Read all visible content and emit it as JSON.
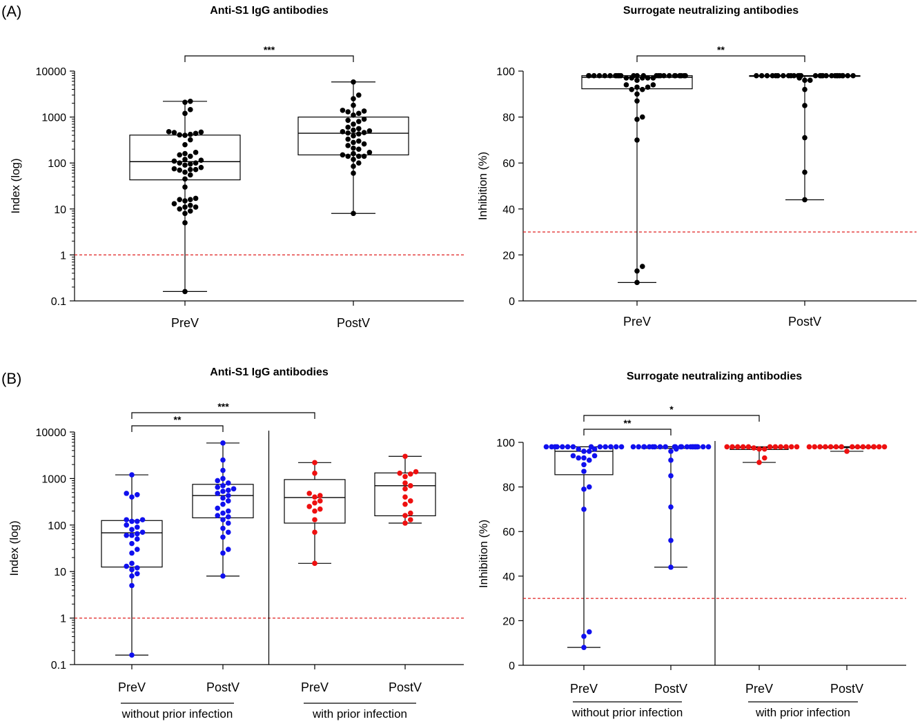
{
  "panel_labels": {
    "a": "(A)",
    "b": "(B)"
  },
  "chart_data": [
    {
      "id": "a_igg",
      "type": "box-scatter",
      "title": "Anti-S1 IgG antibodies",
      "ylabel": "Index (log)",
      "yscale": "log",
      "ylim": [
        0.1,
        10000
      ],
      "yticks": [
        {
          "v": 10000,
          "label": "10000"
        },
        {
          "v": 1000,
          "label": "1000"
        },
        {
          "v": 100,
          "label": "100"
        },
        {
          "v": 10,
          "label": "10"
        },
        {
          "v": 1,
          "label": "1"
        },
        {
          "v": 0.1,
          "label": "0.1"
        }
      ],
      "threshold": 1,
      "categories": [
        "PreV",
        "PostV"
      ],
      "groups": [],
      "boxes": [
        {
          "min": 0.16,
          "q1": 43,
          "median": 107,
          "q3": 405,
          "max": 2200
        },
        {
          "min": 8,
          "q1": 150,
          "median": 445,
          "q3": 1000,
          "max": 5800
        }
      ],
      "points": [
        [
          0.16,
          5,
          8,
          9,
          10,
          11,
          11,
          12,
          13,
          15,
          16,
          16,
          17,
          30,
          45,
          55,
          63,
          70,
          72,
          72,
          75,
          80,
          90,
          95,
          100,
          100,
          110,
          115,
          120,
          140,
          150,
          160,
          170,
          250,
          320,
          400,
          410,
          420,
          440,
          460,
          470,
          480,
          1200,
          1450,
          2100,
          2200
        ],
        [
          8,
          60,
          85,
          100,
          120,
          140,
          140,
          140,
          150,
          160,
          170,
          200,
          210,
          240,
          260,
          280,
          300,
          330,
          390,
          430,
          450,
          460,
          480,
          500,
          520,
          560,
          600,
          700,
          800,
          850,
          900,
          1100,
          1200,
          1300,
          1350,
          1400,
          1800,
          2500,
          3000,
          5800
        ]
      ],
      "point_colors": [
        "#000000",
        "#000000"
      ],
      "significance": [
        {
          "from": 0,
          "to": 1,
          "label": "***"
        }
      ]
    },
    {
      "id": "a_snt",
      "type": "box-scatter",
      "title": "Surrogate neutralizing antibodies",
      "ylabel": "Inhibition (%)",
      "yscale": "linear",
      "ylim": [
        0,
        100
      ],
      "yticks": [
        {
          "v": 100,
          "label": "100"
        },
        {
          "v": 80,
          "label": "80"
        },
        {
          "v": 60,
          "label": "60"
        },
        {
          "v": 40,
          "label": "40"
        },
        {
          "v": 20,
          "label": "20"
        },
        {
          "v": 0,
          "label": "0"
        }
      ],
      "threshold": 30,
      "categories": [
        "PreV",
        "PostV"
      ],
      "groups": [],
      "boxes": [
        {
          "min": 8,
          "q1": 92.3,
          "median": 97.3,
          "q3": 98,
          "max": 98
        },
        {
          "min": 44,
          "q1": 98,
          "median": 98,
          "q3": 98,
          "max": 98
        }
      ],
      "points": [
        [
          8,
          13,
          15,
          70,
          79,
          80,
          87,
          90,
          92,
          92,
          93,
          93,
          94,
          94,
          96,
          97,
          97,
          97,
          97,
          97,
          98,
          98,
          98,
          98,
          98,
          98,
          98,
          98,
          98,
          98,
          98,
          98,
          98,
          98,
          98,
          98,
          98,
          98,
          98,
          98,
          98,
          98,
          98,
          98,
          98,
          98
        ],
        [
          44,
          56,
          71,
          85,
          92,
          96,
          96,
          97,
          98,
          98,
          98,
          98,
          98,
          98,
          98,
          98,
          98,
          98,
          98,
          98,
          98,
          98,
          98,
          98,
          98,
          98,
          98,
          98,
          98,
          98,
          98,
          98,
          98,
          98,
          98,
          98,
          98,
          98,
          98,
          98
        ]
      ],
      "point_colors": [
        "#000000",
        "#000000"
      ],
      "significance": [
        {
          "from": 0,
          "to": 1,
          "label": "**"
        }
      ]
    },
    {
      "id": "b_igg",
      "type": "box-scatter",
      "title": "Anti-S1 IgG antibodies",
      "ylabel": "Index (log)",
      "yscale": "log",
      "ylim": [
        0.1,
        10000
      ],
      "yticks": [
        {
          "v": 10000,
          "label": "10000"
        },
        {
          "v": 1000,
          "label": "1000"
        },
        {
          "v": 100,
          "label": "100"
        },
        {
          "v": 10,
          "label": "10"
        },
        {
          "v": 1,
          "label": "1"
        },
        {
          "v": 0.1,
          "label": "0.1"
        }
      ],
      "threshold": 1,
      "categories": [
        "PreV",
        "PostV",
        "PreV",
        "PostV"
      ],
      "groups": [
        {
          "label": "without prior infection",
          "span": [
            0,
            1
          ]
        },
        {
          "label": "with prior infection",
          "span": [
            2,
            3
          ]
        }
      ],
      "boxes": [
        {
          "min": 0.16,
          "q1": 12.5,
          "median": 68,
          "q3": 125,
          "max": 1200
        },
        {
          "min": 8,
          "q1": 143,
          "median": 430,
          "q3": 750,
          "max": 5800
        },
        {
          "min": 15,
          "q1": 110,
          "median": 390,
          "q3": 950,
          "max": 2200
        },
        {
          "min": 110,
          "q1": 158,
          "median": 700,
          "q3": 1320,
          "max": 3000
        }
      ],
      "points": [
        [
          0.16,
          5,
          8,
          9,
          11,
          12,
          13,
          15,
          25,
          30,
          40,
          50,
          60,
          60,
          65,
          70,
          80,
          90,
          100,
          120,
          120,
          130,
          130,
          400,
          450,
          480,
          1200
        ],
        [
          8,
          25,
          30,
          55,
          70,
          85,
          110,
          130,
          150,
          160,
          180,
          200,
          230,
          280,
          330,
          380,
          430,
          480,
          530,
          560,
          600,
          650,
          700,
          800,
          900,
          1000,
          1500,
          2500,
          5800
        ],
        [
          15,
          70,
          130,
          200,
          220,
          250,
          300,
          330,
          400,
          430,
          480,
          1300,
          2200
        ],
        [
          110,
          130,
          160,
          180,
          280,
          330,
          400,
          600,
          700,
          800,
          1100,
          1250,
          1300,
          1400,
          3000
        ]
      ],
      "point_colors": [
        "#1010ee",
        "#1010ee",
        "#ee1010",
        "#ee1010"
      ],
      "significance": [
        {
          "from": 0,
          "to": 1,
          "label": "**"
        },
        {
          "from": 0,
          "to": 2,
          "label": "***"
        }
      ],
      "divider_after": 1
    },
    {
      "id": "b_snt",
      "type": "box-scatter",
      "title": "Surrogate neutralizing antibodies",
      "ylabel": "Inhibition (%)",
      "yscale": "linear",
      "ylim": [
        0,
        100
      ],
      "yticks": [
        {
          "v": 100,
          "label": "100"
        },
        {
          "v": 80,
          "label": "80"
        },
        {
          "v": 60,
          "label": "60"
        },
        {
          "v": 40,
          "label": "40"
        },
        {
          "v": 20,
          "label": "20"
        },
        {
          "v": 0,
          "label": "0"
        }
      ],
      "threshold": 30,
      "categories": [
        "PreV",
        "PostV",
        "PreV",
        "PostV"
      ],
      "groups": [
        {
          "label": "without prior infection",
          "span": [
            0,
            1
          ]
        },
        {
          "label": "with prior infection",
          "span": [
            2,
            3
          ]
        }
      ],
      "boxes": [
        {
          "min": 8,
          "q1": 85.5,
          "median": 96,
          "q3": 98,
          "max": 98
        },
        {
          "min": 44,
          "q1": 97.3,
          "median": 98,
          "q3": 98,
          "max": 98
        },
        {
          "min": 91,
          "q1": 96.8,
          "median": 97.6,
          "q3": 98,
          "max": 98
        },
        {
          "min": 96,
          "q1": 97.6,
          "median": 98,
          "q3": 98,
          "max": 98
        }
      ],
      "points": [
        [
          8,
          13,
          15,
          70,
          79,
          80,
          87,
          90,
          92,
          93,
          93,
          94,
          94,
          96,
          96,
          97,
          97,
          98,
          98,
          98,
          98,
          98,
          98,
          98,
          98,
          98,
          98,
          98,
          98,
          98
        ],
        [
          44,
          56,
          71,
          85,
          92,
          96,
          97,
          98,
          98,
          98,
          98,
          98,
          98,
          98,
          98,
          98,
          98,
          98,
          98,
          98,
          98,
          98,
          98,
          98,
          98,
          98,
          98,
          98,
          98,
          98
        ],
        [
          91,
          93,
          97,
          97,
          97.5,
          98,
          98,
          98,
          98,
          98,
          98,
          98,
          98,
          98,
          98,
          98
        ],
        [
          96,
          98,
          98,
          98,
          98,
          98,
          98,
          98,
          98,
          98,
          98,
          98,
          98,
          98,
          98,
          98
        ]
      ],
      "point_colors": [
        "#1010ee",
        "#1010ee",
        "#ee1010",
        "#ee1010"
      ],
      "significance": [
        {
          "from": 0,
          "to": 1,
          "label": "**"
        },
        {
          "from": 0,
          "to": 2,
          "label": "*"
        }
      ],
      "divider_after": 1
    }
  ]
}
